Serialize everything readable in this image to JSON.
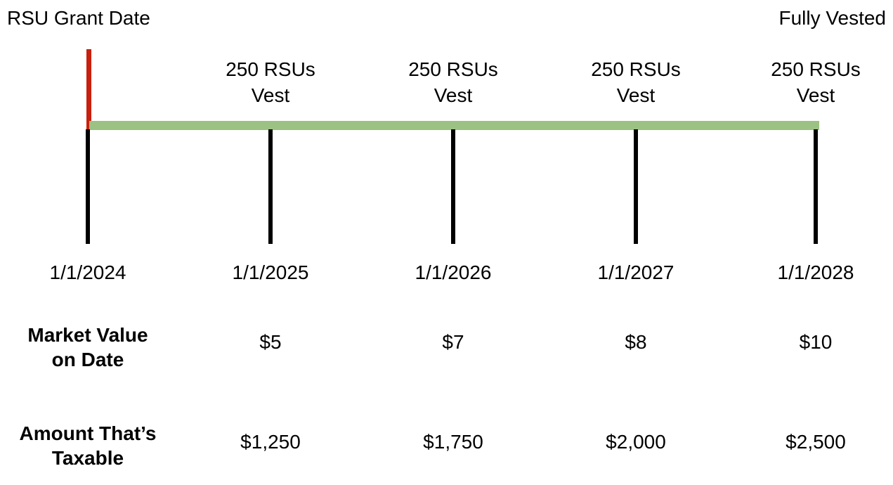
{
  "colors": {
    "grant_line": "#C8200E",
    "vest_bar": "#9BC183",
    "tick": "#000000"
  },
  "header": {
    "left_label": "RSU Grant Date",
    "right_label": "Fully Vested"
  },
  "timeline": {
    "dates": [
      "1/1/2024",
      "1/1/2025",
      "1/1/2026",
      "1/1/2027",
      "1/1/2028"
    ],
    "vest_events": [
      {
        "line1": "250 RSUs",
        "line2": "Vest"
      },
      {
        "line1": "250 RSUs",
        "line2": "Vest"
      },
      {
        "line1": "250 RSUs",
        "line2": "Vest"
      },
      {
        "line1": "250 RSUs",
        "line2": "Vest"
      }
    ]
  },
  "rows": [
    {
      "label_line1": "Market Value",
      "label_line2": "on Date",
      "values": [
        "$5",
        "$7",
        "$8",
        "$10"
      ]
    },
    {
      "label_line1": "Amount That’s",
      "label_line2": "Taxable",
      "values": [
        "$1,250",
        "$1,750",
        "$2,000",
        "$2,500"
      ]
    }
  ]
}
